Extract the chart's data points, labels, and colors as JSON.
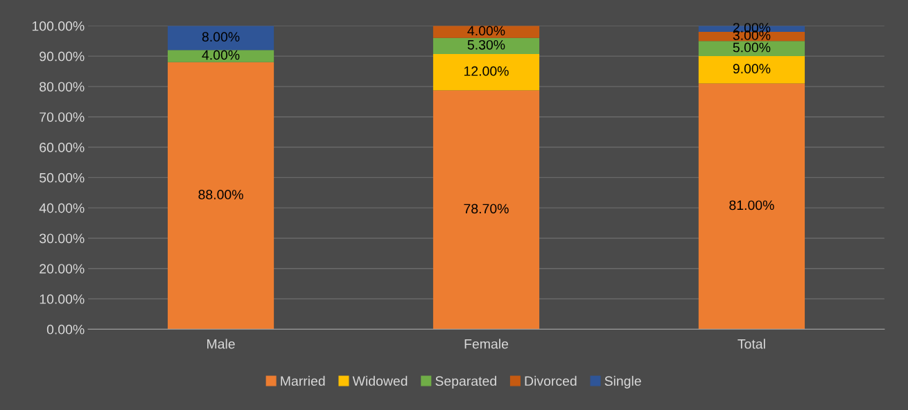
{
  "chart_data": {
    "type": "bar",
    "stacked": true,
    "categories": [
      "Male",
      "Female",
      "Total"
    ],
    "series": [
      {
        "name": "Married",
        "color": "#ed7d31",
        "values": [
          88,
          78.7,
          81
        ],
        "value_labels": [
          "88.00%",
          "78.70%",
          "81.00%"
        ]
      },
      {
        "name": "Widowed",
        "color": "#ffc000",
        "values": [
          0,
          12,
          9
        ],
        "value_labels": [
          null,
          "12.00%",
          "9.00%"
        ]
      },
      {
        "name": "Separated",
        "color": "#70ad47",
        "values": [
          4,
          5.3,
          5
        ],
        "value_labels": [
          "4.00%",
          "5.30%",
          "5.00%"
        ]
      },
      {
        "name": "Divorced",
        "color": "#c55a11",
        "values": [
          0,
          4,
          3
        ],
        "value_labels": [
          null,
          "4.00%",
          "3.00%"
        ]
      },
      {
        "name": "Single",
        "color": "#2f5597",
        "values": [
          8,
          0,
          2
        ],
        "value_labels": [
          "8.00%",
          null,
          "2.00%"
        ]
      }
    ],
    "ylim": [
      0,
      100
    ],
    "yticks": [
      {
        "value": 0,
        "label": "0.00%"
      },
      {
        "value": 10,
        "label": "10.00%"
      },
      {
        "value": 20,
        "label": "20.00%"
      },
      {
        "value": 30,
        "label": "30.00%"
      },
      {
        "value": 40,
        "label": "40.00%"
      },
      {
        "value": 50,
        "label": "50.00%"
      },
      {
        "value": 60,
        "label": "60.00%"
      },
      {
        "value": 70,
        "label": "70.00%"
      },
      {
        "value": 80,
        "label": "80.00%"
      },
      {
        "value": 90,
        "label": "90.00%"
      },
      {
        "value": 100,
        "label": "100.00%"
      }
    ],
    "grid": "y",
    "legend": "bottom"
  }
}
